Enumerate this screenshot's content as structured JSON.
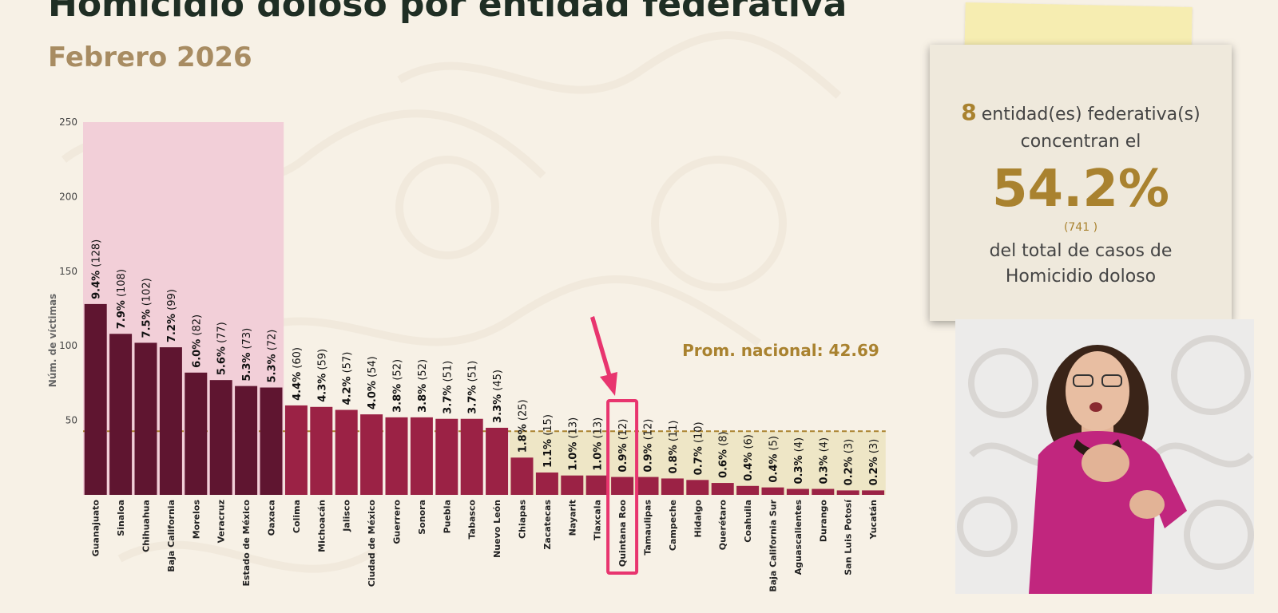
{
  "slide": {
    "title": "Homicidio doloso por entidad federativa",
    "subtitle": "Febrero 2026"
  },
  "callout": {
    "count": "8",
    "text1": "entidad(es) federativa(s)",
    "text2": "concentran el",
    "percent": "54.2%",
    "cases": "(741 )",
    "text3": "del total de casos de",
    "text4": "Homicidio doloso"
  },
  "colors": {
    "top_bar": "#5f1530",
    "other_bar": "#9b2245",
    "top_shade": "#f2cfd8",
    "below_avg_shade": "#eee6c6",
    "avg_line": "#a9822f",
    "highlight": "#e8356f"
  },
  "interpreter": {
    "icon": "sign-language-interpreter"
  },
  "chart_data": {
    "type": "bar",
    "ylabel": "Núm. de víctimas",
    "ylim": [
      0,
      250
    ],
    "yticks": [
      50,
      100,
      150,
      200,
      250
    ],
    "categories": [
      "Guanajuato",
      "Sinaloa",
      "Chihuahua",
      "Baja California",
      "Morelos",
      "Veracruz",
      "Estado de México",
      "Oaxaca",
      "Colima",
      "Michoacán",
      "Jalisco",
      "Ciudad de México",
      "Guerrero",
      "Sonora",
      "Puebla",
      "Tabasco",
      "Nuevo León",
      "Chiapas",
      "Zacatecas",
      "Nayarit",
      "Tlaxcala",
      "Quintana Roo",
      "Tamaulipas",
      "Campeche",
      "Hidalgo",
      "Querétaro",
      "Coahuila",
      "Baja California Sur",
      "Aguascalientes",
      "Durango",
      "San Luis Potosí",
      "Yucatán"
    ],
    "values": [
      128,
      108,
      102,
      99,
      82,
      77,
      73,
      72,
      60,
      59,
      57,
      54,
      52,
      52,
      51,
      51,
      45,
      25,
      15,
      13,
      13,
      12,
      12,
      11,
      10,
      8,
      6,
      5,
      4,
      4,
      3,
      3
    ],
    "percent_labels": [
      "9.4%",
      "7.9%",
      "7.5%",
      "7.2%",
      "6.0%",
      "5.6%",
      "5.3%",
      "5.3%",
      "4.4%",
      "4.3%",
      "4.2%",
      "4.0%",
      "3.8%",
      "3.8%",
      "3.7%",
      "3.7%",
      "3.3%",
      "1.8%",
      "1.1%",
      "1.0%",
      "1.0%",
      "0.9%",
      "0.9%",
      "0.8%",
      "0.7%",
      "0.6%",
      "0.4%",
      "0.4%",
      "0.3%",
      "0.3%",
      "0.2%",
      "0.2%"
    ],
    "count_labels": [
      "(128)",
      "(108)",
      "(102)",
      "(99)",
      "(82)",
      "(77)",
      "(73)",
      "(72)",
      "(60)",
      "(59)",
      "(57)",
      "(54)",
      "(52)",
      "(52)",
      "(51)",
      "(51)",
      "(45)",
      "(25)",
      "(15)",
      "(13)",
      "(13)",
      "(12)",
      "(12)",
      "(11)",
      "(10)",
      "(8)",
      "(6)",
      "(5)",
      "(4)",
      "(4)",
      "(3)",
      "(3)"
    ],
    "top_count": 8,
    "average": 42.69,
    "average_label": "Prom. nacional: 42.69",
    "highlighted_category": "Quintana Roo"
  }
}
